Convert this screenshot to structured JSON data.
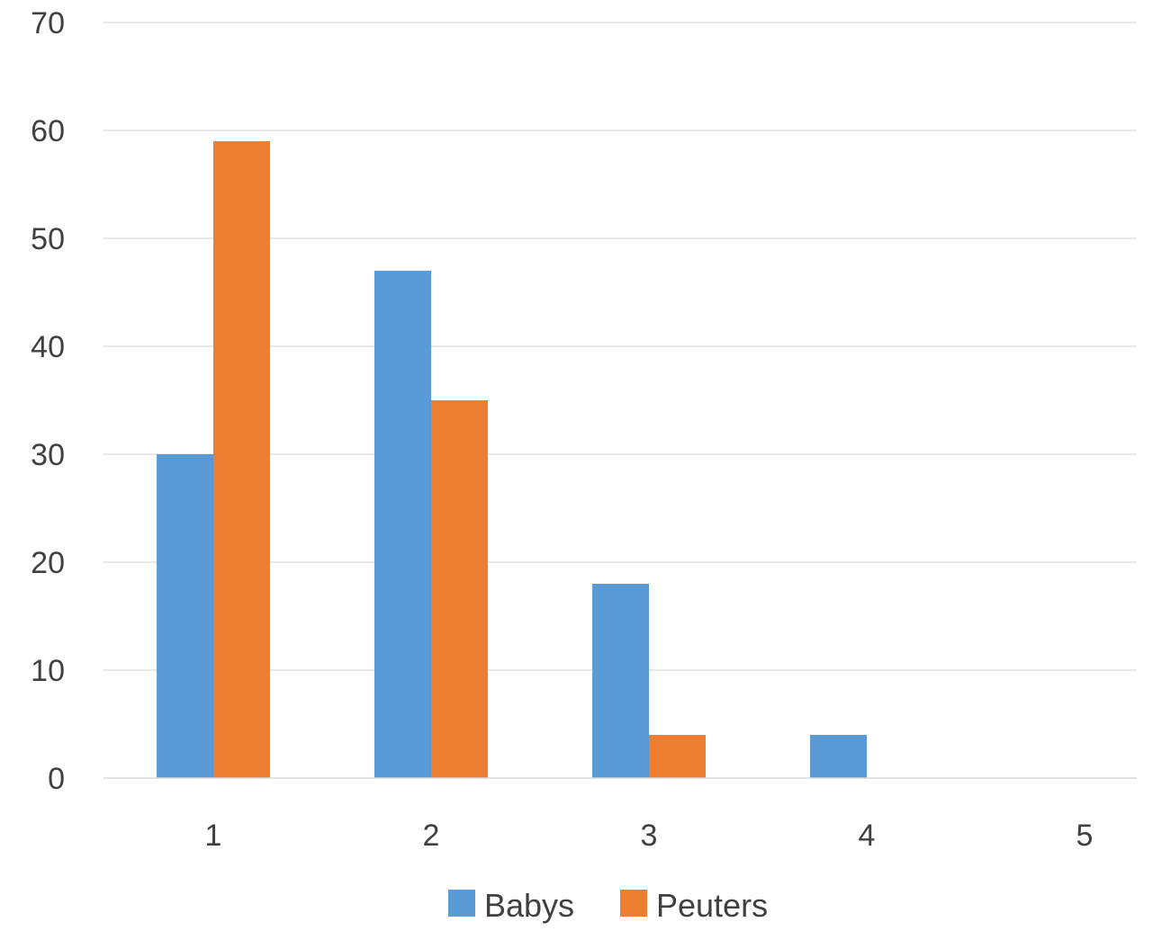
{
  "chart_data": {
    "type": "bar",
    "categories": [
      "1",
      "2",
      "3",
      "4",
      "5"
    ],
    "series": [
      {
        "name": "Babys",
        "values": [
          30,
          47,
          18,
          4,
          0
        ],
        "color": "#5b9bd5"
      },
      {
        "name": "Peuters",
        "values": [
          59,
          35,
          4,
          0,
          0
        ],
        "color": "#ed7d31"
      }
    ],
    "title": "",
    "xlabel": "",
    "ylabel": "",
    "ylim": [
      0,
      70
    ],
    "yticks": [
      "0",
      "10",
      "20",
      "30",
      "40",
      "50",
      "60",
      "70"
    ],
    "grid": true,
    "legend_position": "bottom",
    "gridline_color": "#d9d9d9",
    "text_color": "#404040"
  }
}
